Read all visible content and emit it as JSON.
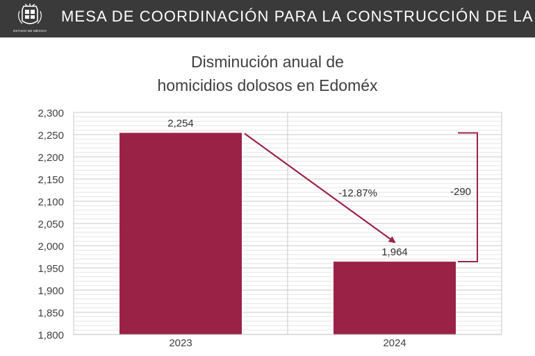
{
  "header": {
    "title": "MESA DE COORDINACIÓN PARA LA CONSTRUCCIÓN DE LA PAZ",
    "logo_caption": "ESTADO DE MÉXICO",
    "background": "#3a3a3a"
  },
  "chart_data": {
    "type": "bar",
    "title_line1": "Disminución anual de",
    "title_line2": "homicidios dolosos en Edoméx",
    "categories": [
      "2023",
      "2024"
    ],
    "values": [
      2254,
      1964
    ],
    "value_labels": [
      "2,254",
      "1,964"
    ],
    "ylim": [
      1800,
      2300
    ],
    "y_ticks": [
      1800,
      1850,
      1900,
      1950,
      2000,
      2050,
      2100,
      2150,
      2200,
      2250,
      2300
    ],
    "y_tick_labels": [
      "1,800",
      "1,850",
      "1,900",
      "1,950",
      "2,000",
      "2,050",
      "2,100",
      "2,150",
      "2,200",
      "2,250",
      "2,300"
    ],
    "grid": true,
    "bar_color": "#9b2247",
    "annotations": {
      "percent_change": "-12.87%",
      "absolute_change": "-290"
    }
  }
}
